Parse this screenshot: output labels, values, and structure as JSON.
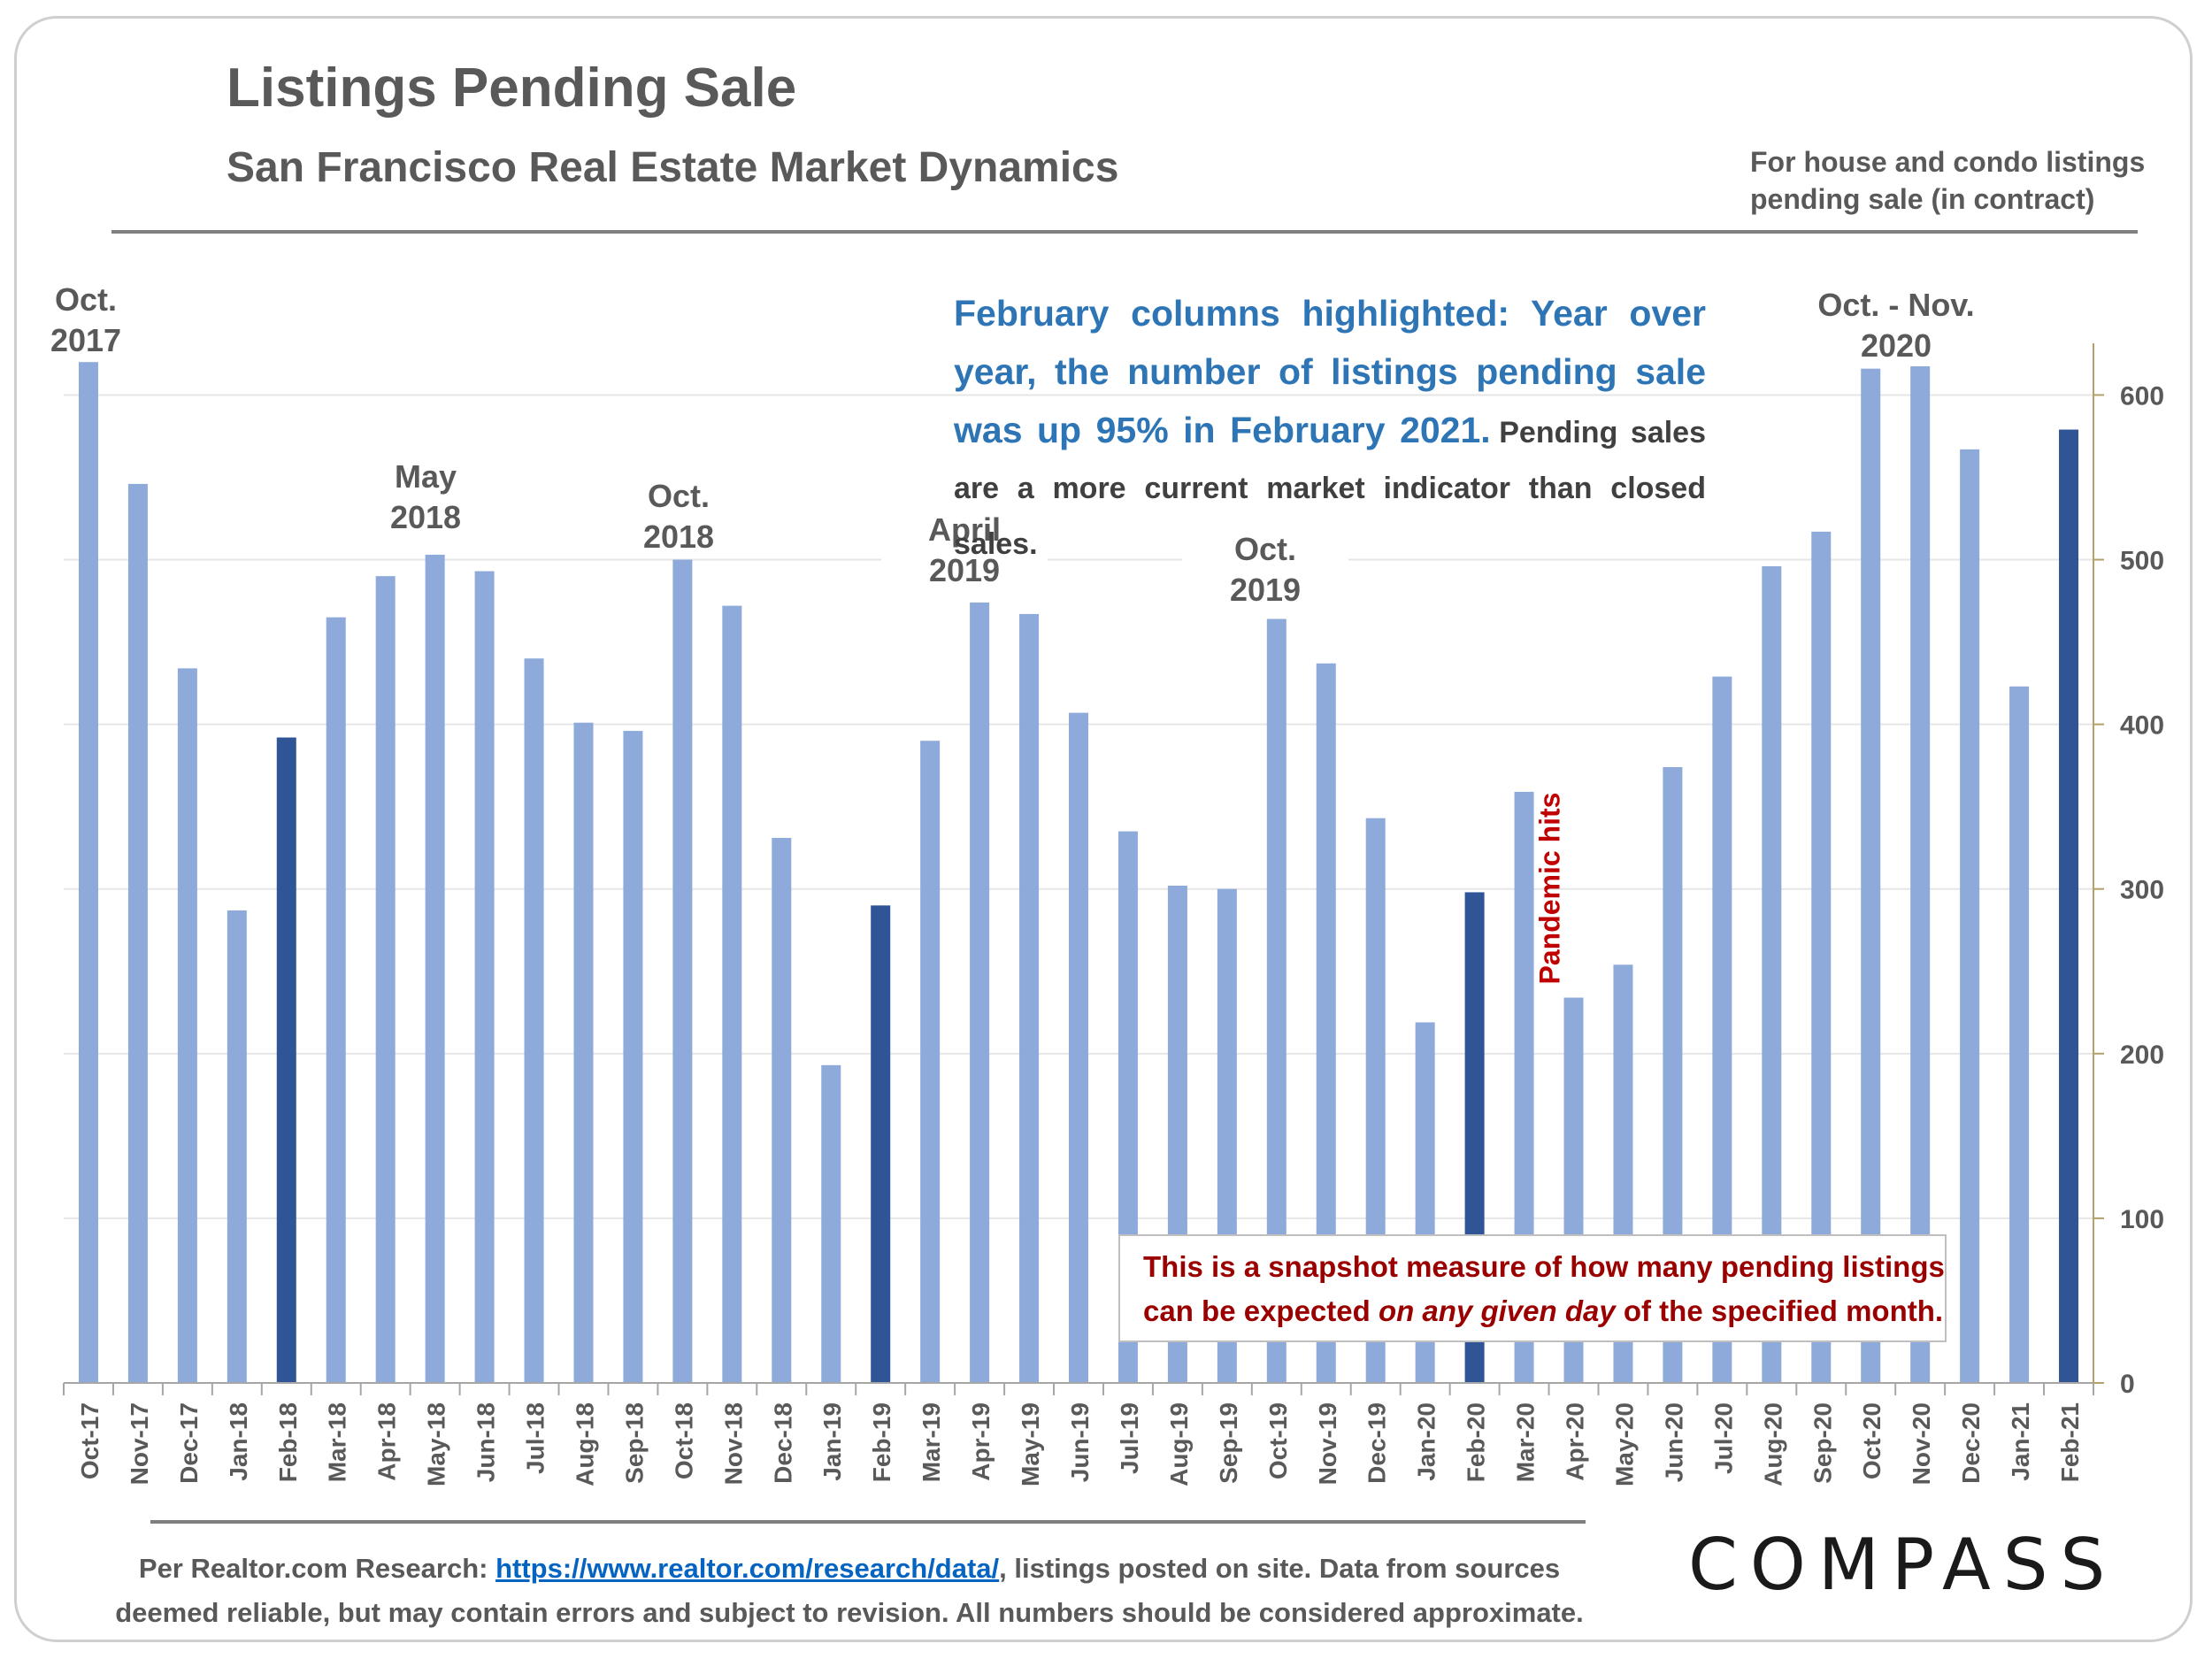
{
  "header": {
    "title": "Listings Pending Sale",
    "subtitle": "San Francisco Real Estate Market Dynamics",
    "note_line1": "For house and condo listings",
    "note_line2": "pending sale (in contract)"
  },
  "annotations": {
    "oct2017": [
      "Oct.",
      "2017"
    ],
    "may2018": [
      "May",
      "2018"
    ],
    "oct2018": [
      "Oct.",
      "2018"
    ],
    "apr2019": [
      "April",
      "2019"
    ],
    "oct2019": [
      "Oct.",
      "2019"
    ],
    "octnov2020": [
      "Oct. - Nov.",
      "2020"
    ],
    "pandemic": "Pandemic hits"
  },
  "callout": {
    "lead": "February columns highlighted: Year over year, the number of listings pending sale was up 95% in February 2021.",
    "rest": "Pending sales are a more current market indicator than closed sales."
  },
  "snapshot": {
    "before": "This is a snapshot measure of how many pending listings can be expected ",
    "emph": "on any given day",
    "after": " of the specified month."
  },
  "footer": {
    "prefix": "Per Realtor.com Research: ",
    "link": "https://www.realtor.com/research/data/",
    "suffix": ", listings posted on site. Data from sources",
    "line2": "deemed reliable, but may contain errors and subject to revision. All numbers should be considered approximate."
  },
  "logo": "COMPASS",
  "colors": {
    "bar": "#8eaadb",
    "highlight": "#2f5597",
    "callout_blue": "#2e75b6",
    "pandemic_red": "#c00000",
    "snapshot_red": "#9b0000",
    "text_gray": "#595959"
  },
  "chart_data": {
    "type": "bar",
    "categories": [
      "Oct-17",
      "Nov-17",
      "Dec-17",
      "Jan-18",
      "Feb-18",
      "Mar-18",
      "Apr-18",
      "May-18",
      "Jun-18",
      "Jul-18",
      "Aug-18",
      "Sep-18",
      "Oct-18",
      "Nov-18",
      "Dec-18",
      "Jan-19",
      "Feb-19",
      "Mar-19",
      "Apr-19",
      "May-19",
      "Jun-19",
      "Jul-19",
      "Aug-19",
      "Sep-19",
      "Oct-19",
      "Nov-19",
      "Dec-19",
      "Jan-20",
      "Feb-20",
      "Mar-20",
      "Apr-20",
      "May-20",
      "Jun-20",
      "Jul-20",
      "Aug-20",
      "Sep-20",
      "Oct-20",
      "Nov-20",
      "Dec-20",
      "Jan-21",
      "Feb-21"
    ],
    "values": [
      620,
      546,
      434,
      287,
      392,
      465,
      490,
      503,
      493,
      440,
      401,
      396,
      500,
      472,
      331,
      193,
      290,
      390,
      474,
      467,
      407,
      335,
      302,
      300,
      464,
      437,
      343,
      219,
      298,
      359,
      234,
      254,
      374,
      429,
      496,
      517,
      616,
      619,
      567,
      423,
      579
    ],
    "highlighted": [
      "Feb-18",
      "Feb-19",
      "Feb-20",
      "Feb-21"
    ],
    "ylim": [
      0,
      640
    ],
    "yticks": [
      0,
      100,
      200,
      300,
      400,
      500,
      600
    ],
    "ytick_labels": [
      "0",
      "100",
      "200",
      "300",
      "400",
      "500",
      "600"
    ],
    "y_axis_side": "right",
    "grid": true,
    "legend": "none"
  }
}
